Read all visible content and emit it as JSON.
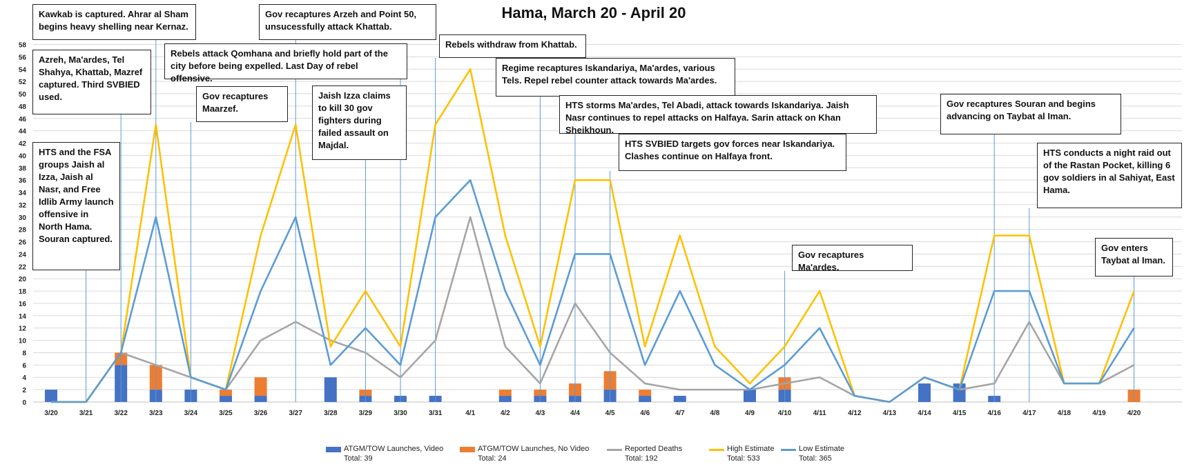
{
  "chart_data": {
    "type": "line",
    "title": "Hama, March 20 - April 20",
    "xlabel": "",
    "ylabel": "",
    "ylim": [
      0,
      58
    ],
    "yticks": [
      0,
      2,
      4,
      6,
      8,
      10,
      12,
      14,
      16,
      18,
      20,
      22,
      24,
      26,
      28,
      30,
      32,
      34,
      36,
      38,
      40,
      42,
      44,
      46,
      48,
      50,
      52,
      54,
      56,
      58
    ],
    "grid": true,
    "legend_position": "bottom",
    "categories": [
      "3/20",
      "3/21",
      "3/22",
      "3/23",
      "3/24",
      "3/25",
      "3/26",
      "3/27",
      "3/28",
      "3/29",
      "3/30",
      "3/31",
      "4/1",
      "4/2",
      "4/3",
      "4/4",
      "4/5",
      "4/6",
      "4/7",
      "4/8",
      "4/9",
      "4/10",
      "4/11",
      "4/12",
      "4/13",
      "4/14",
      "4/15",
      "4/16",
      "4/17",
      "4/18",
      "4/19",
      "4/20"
    ],
    "series": [
      {
        "name": "ATGM/TOW Launches, Video",
        "total_label": "Total: 39",
        "type": "bar",
        "color": "#4472c4",
        "values": [
          2,
          0,
          6,
          2,
          2,
          1,
          1,
          0,
          4,
          1,
          1,
          1,
          0,
          1,
          1,
          1,
          2,
          1,
          1,
          0,
          2,
          2,
          0,
          0,
          0,
          3,
          3,
          1,
          0,
          0,
          0,
          0
        ]
      },
      {
        "name": "ATGM/TOW Launches, No Video",
        "total_label": "Total: 24",
        "type": "bar",
        "color": "#ed7d31",
        "values": [
          0,
          0,
          2,
          4,
          0,
          1,
          3,
          0,
          0,
          1,
          0,
          0,
          0,
          1,
          1,
          2,
          3,
          1,
          0,
          0,
          0,
          2,
          0,
          0,
          0,
          0,
          0,
          0,
          0,
          0,
          0,
          2
        ]
      },
      {
        "name": "Reported Deaths",
        "total_label": "Total: 192",
        "type": "line",
        "color": "#a5a5a5",
        "values": [
          0,
          0,
          8,
          6,
          4,
          2,
          10,
          13,
          10,
          8,
          4,
          10,
          30,
          9,
          3,
          16,
          8,
          3,
          2,
          2,
          2,
          3,
          4,
          1,
          0,
          4,
          2,
          3,
          13,
          3,
          3,
          6
        ]
      },
      {
        "name": "High Estimate",
        "total_label": "Total: 533",
        "type": "line",
        "color": "#ffc000",
        "values": [
          0,
          0,
          8,
          45,
          4,
          2,
          27,
          45,
          9,
          18,
          9,
          45,
          54,
          27,
          9,
          36,
          36,
          9,
          27,
          9,
          3,
          9,
          18,
          1,
          0,
          4,
          2,
          27,
          27,
          3,
          3,
          18
        ]
      },
      {
        "name": "Low Estimate",
        "total_label": "Total: 365",
        "type": "line",
        "color": "#5b9bd5",
        "values": [
          0,
          0,
          8,
          30,
          4,
          2,
          18,
          30,
          6,
          12,
          6,
          30,
          36,
          18,
          6,
          24,
          24,
          6,
          18,
          6,
          2,
          6,
          12,
          1,
          0,
          4,
          2,
          18,
          18,
          3,
          3,
          12
        ]
      }
    ],
    "annotations": [
      {
        "date": "3/23",
        "text": "Kawkab is captured. Ahrar al Sham begins heavy shelling near Kernaz."
      },
      {
        "date": "3/22",
        "text": "Azreh, Ma'ardes, Tel Shahya, Khattab, Mazref captured. Third SVBIED used."
      },
      {
        "date": "3/21",
        "text": "HTS and the FSA groups Jaish al Izza, Jaish al Nasr, and Free Idlib Army launch offensive in North Hama. Souran captured."
      },
      {
        "date": "3/27",
        "text": "Gov recaptures Arzeh and Point 50, unsucessfully attack Khattab."
      },
      {
        "date": "3/30",
        "text": "Rebels attack Qomhana and briefly hold part of the city before being expelled. Last Day of rebel offensive."
      },
      {
        "date": "3/24",
        "text": "Gov recaptures Maarzef."
      },
      {
        "date": "3/29",
        "text": "Jaish Izza claims to kill 30 gov fighters during failed assault on Majdal."
      },
      {
        "date": "3/31",
        "text": "Rebels withdraw from Khattab."
      },
      {
        "date": "4/3",
        "text": "Regime recaptures Iskandariya, Ma'ardes, various Tels. Repel rebel counter attack towards Ma'ardes."
      },
      {
        "date": "4/4",
        "text": "HTS storms Ma'ardes, Tel Abadi, attack towards Iskandariya. Jaish Nasr continues to repel attacks on Halfaya. Sarin attack on Khan Sheikhoun."
      },
      {
        "date": "4/5",
        "text": "HTS SVBIED targets gov forces near Iskandariya. Clashes continue on Halfaya front."
      },
      {
        "date": "4/10",
        "text": "Gov recaptures Ma'ardes."
      },
      {
        "date": "4/16",
        "text": "Gov recaptures Souran and begins advancing on Taybat al Iman."
      },
      {
        "date": "4/17",
        "text": "HTS conducts a night raid out of the Rastan Pocket, killing 6 gov soldiers in al Sahiyat, East Hama."
      },
      {
        "date": "4/20",
        "text": "Gov enters Taybat al Iman."
      }
    ]
  }
}
